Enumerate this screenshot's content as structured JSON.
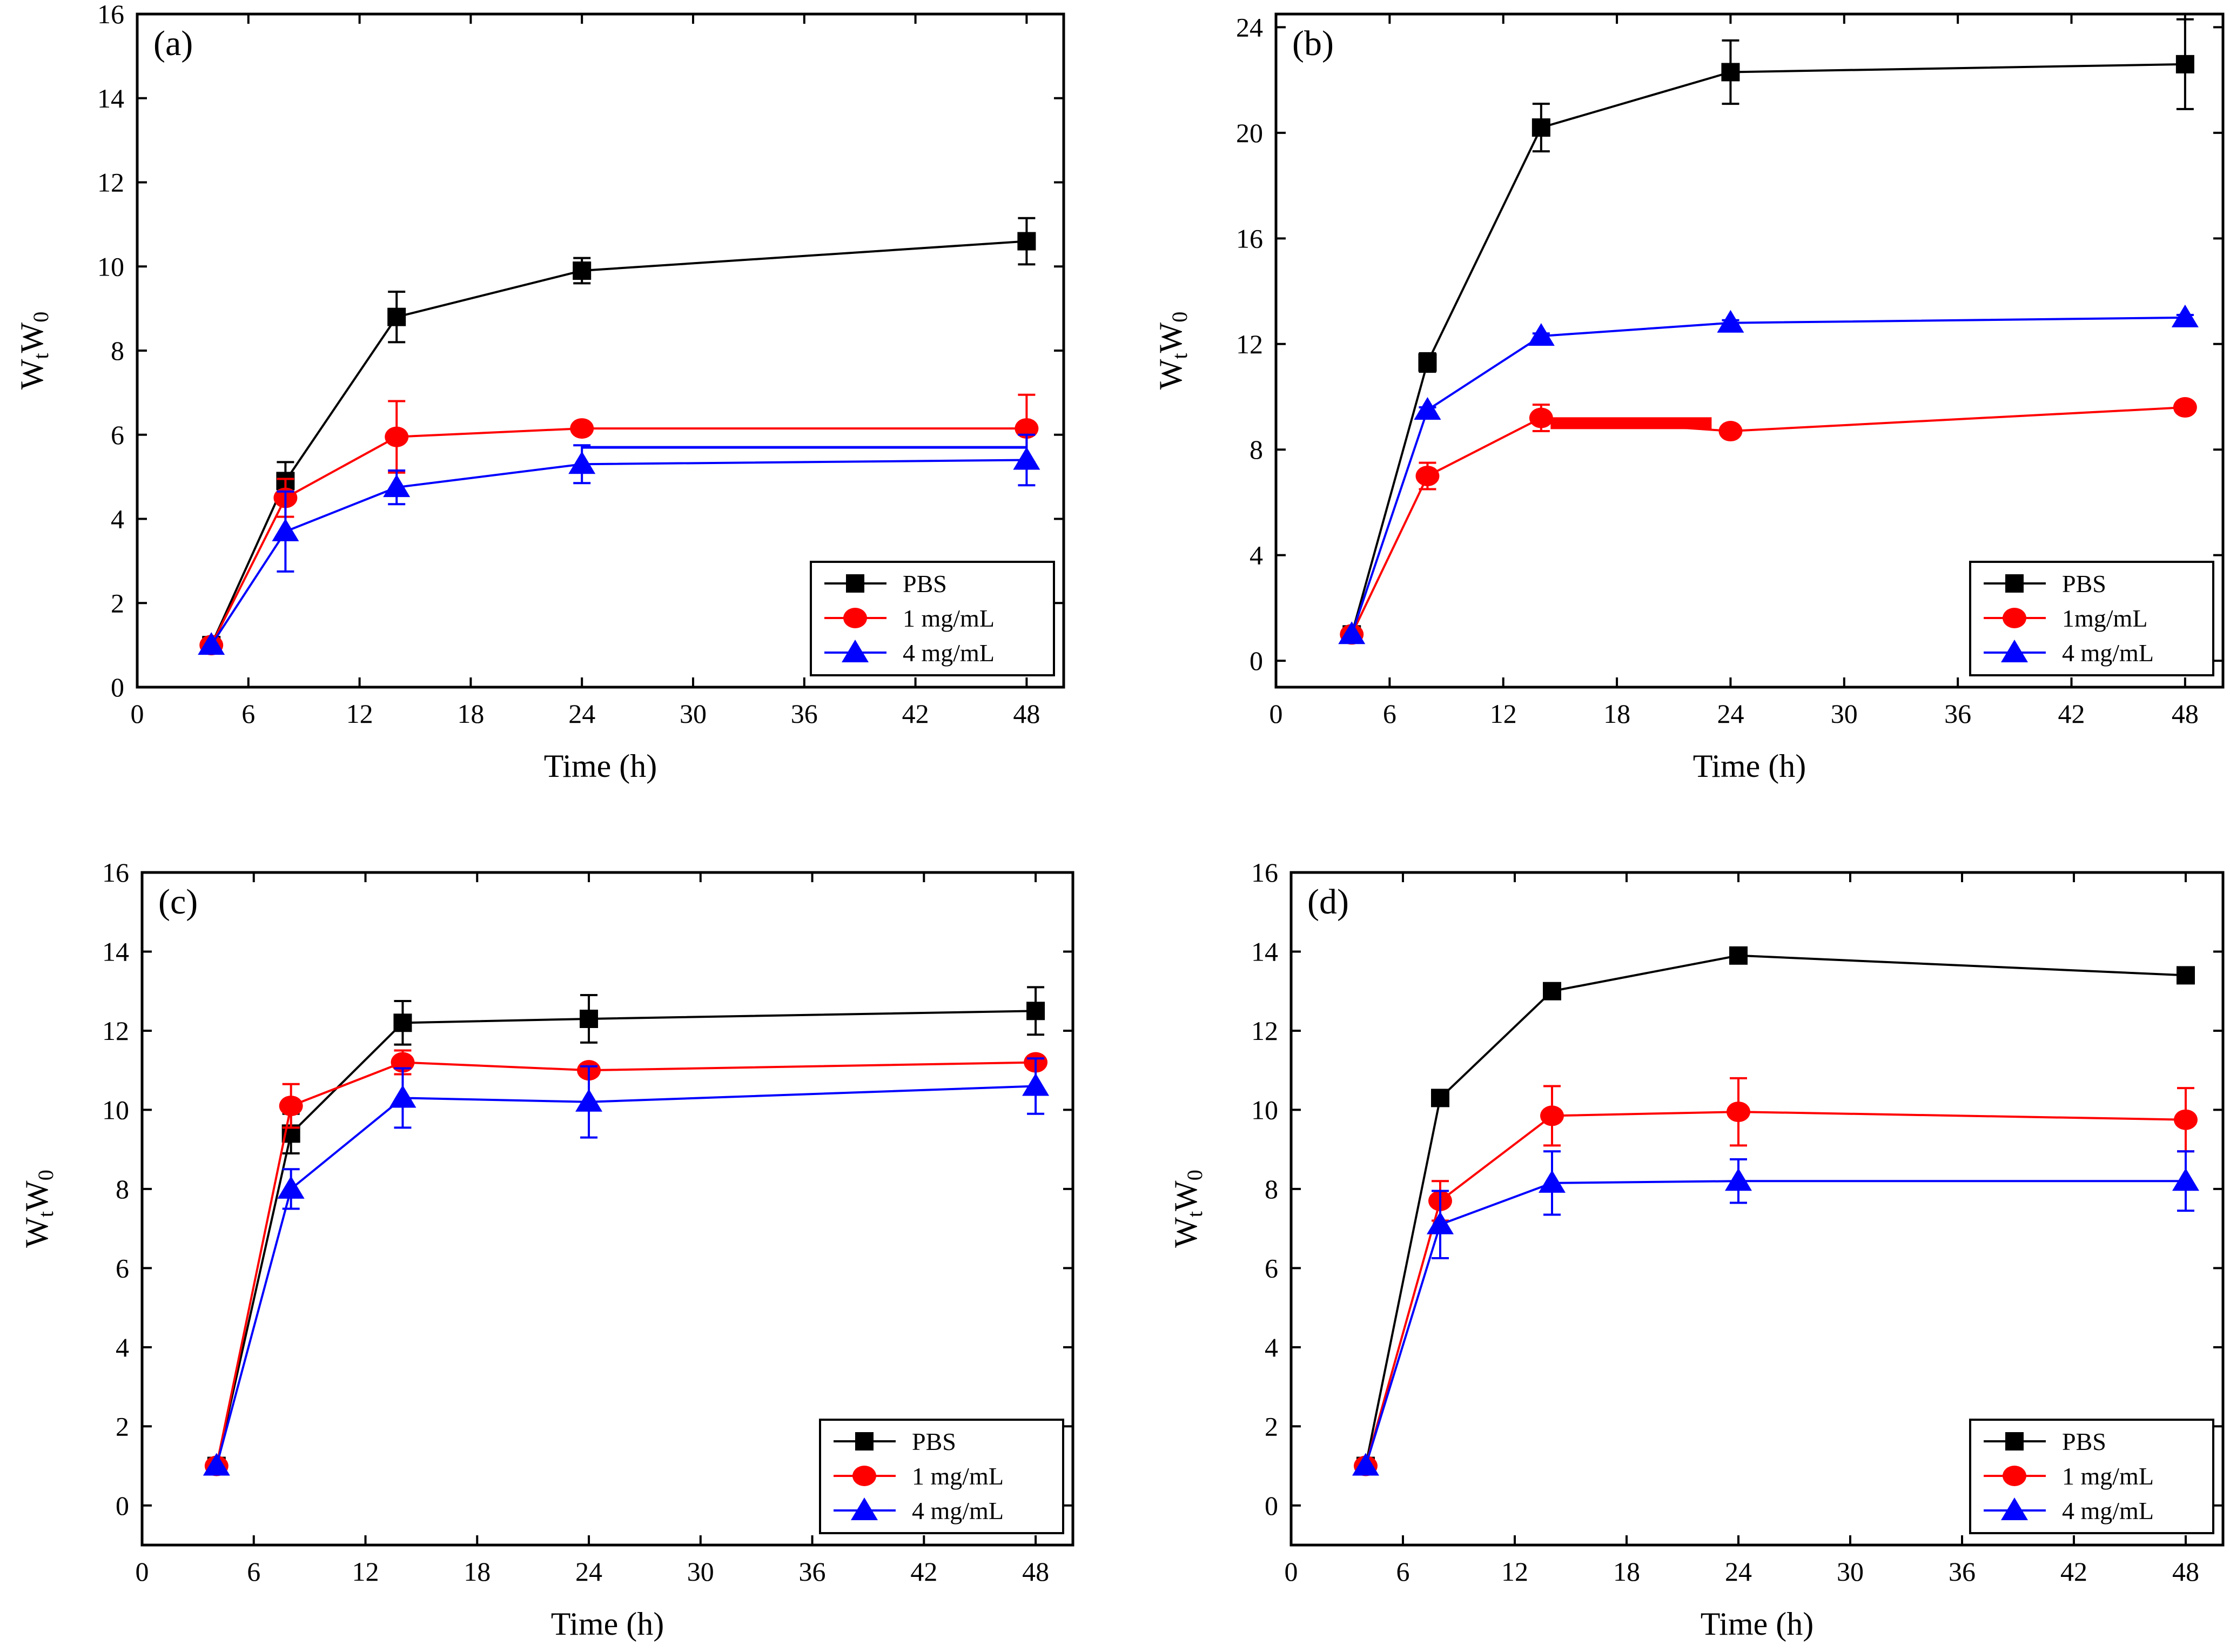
{
  "colors": {
    "PBS": "#000000",
    "1mg": "#ff0000",
    "4mg": "#0000ff",
    "axis": "#000000"
  },
  "chart_data": [
    {
      "type": "line",
      "panel_label": "(a)",
      "xlabel": "Time (h)",
      "ylabel_main": "W",
      "ylabel_sub1": "t",
      "ylabel_mid": "W",
      "ylabel_sub2": "0",
      "xlim": [
        0,
        50
      ],
      "ylim": [
        0,
        16
      ],
      "x_ticks": [
        0,
        6,
        12,
        18,
        24,
        30,
        36,
        42,
        48
      ],
      "y_ticks": [
        0,
        2,
        4,
        6,
        8,
        10,
        12,
        14,
        16
      ],
      "legend_position": "bottom-right",
      "x": [
        4,
        8,
        14,
        24,
        48
      ],
      "series": [
        {
          "name": "PBS",
          "marker": "square",
          "values": [
            1.0,
            4.9,
            8.8,
            9.9,
            10.6
          ],
          "errors": [
            0.05,
            0.45,
            0.6,
            0.3,
            0.55
          ]
        },
        {
          "name": "1 mg/mL",
          "marker": "circle",
          "values": [
            1.0,
            4.5,
            5.95,
            6.15,
            6.15
          ],
          "errors": [
            0.05,
            0.45,
            0.85,
            0.05,
            0.8
          ]
        },
        {
          "name": "4 mg/mL",
          "marker": "triangle",
          "values": [
            1.0,
            3.7,
            4.75,
            5.3,
            5.4
          ],
          "errors": [
            0.05,
            0.95,
            0.4,
            0.45,
            0.6
          ],
          "h_line": {
            "from": 24,
            "to": 48,
            "y": 5.7
          }
        }
      ]
    },
    {
      "type": "line",
      "panel_label": "(b)",
      "xlabel": "Time (h)",
      "ylabel_main": "W",
      "ylabel_sub1": "t",
      "ylabel_mid": "W",
      "ylabel_sub2": "0",
      "xlim": [
        0,
        50
      ],
      "ylim": [
        -1,
        24.5
      ],
      "x_ticks": [
        0,
        6,
        12,
        18,
        24,
        30,
        36,
        42,
        48
      ],
      "y_ticks": [
        0,
        4,
        8,
        12,
        16,
        20,
        24
      ],
      "legend_position": "bottom-right",
      "x": [
        4,
        8,
        14,
        24,
        48
      ],
      "series": [
        {
          "name": "PBS",
          "marker": "square",
          "values": [
            1.0,
            11.3,
            20.2,
            22.3,
            22.6
          ],
          "errors": [
            0.05,
            0.35,
            0.9,
            1.2,
            1.7
          ]
        },
        {
          "name": "1mg/mL",
          "marker": "circle",
          "values": [
            1.0,
            7.0,
            9.2,
            8.7,
            9.6
          ],
          "errors": [
            0.05,
            0.5,
            0.5,
            0.1,
            0.1
          ],
          "bar": {
            "from": 14.5,
            "to": 23,
            "y": 9.0
          }
        },
        {
          "name": "4 mg/mL",
          "marker": "triangle",
          "values": [
            1.0,
            9.5,
            12.3,
            12.8,
            13.0
          ],
          "errors": [
            0.05,
            0.1,
            0.1,
            0.1,
            0.1
          ]
        }
      ]
    },
    {
      "type": "line",
      "panel_label": "(c)",
      "xlabel": "Time (h)",
      "ylabel_main": "W",
      "ylabel_sub1": "t",
      "ylabel_mid": "W",
      "ylabel_sub2": "0",
      "xlim": [
        0,
        50
      ],
      "ylim": [
        -1,
        16
      ],
      "x_ticks": [
        0,
        6,
        12,
        18,
        24,
        30,
        36,
        42,
        48
      ],
      "y_ticks": [
        0,
        2,
        4,
        6,
        8,
        10,
        12,
        14,
        16
      ],
      "legend_position": "bottom-right",
      "x": [
        4,
        8,
        14,
        24,
        48
      ],
      "series": [
        {
          "name": "PBS",
          "marker": "square",
          "values": [
            1.0,
            9.4,
            12.2,
            12.3,
            12.5
          ],
          "errors": [
            0.05,
            0.5,
            0.55,
            0.6,
            0.6
          ]
        },
        {
          "name": "1 mg/mL",
          "marker": "circle",
          "values": [
            1.0,
            10.1,
            11.2,
            11.0,
            11.2
          ],
          "errors": [
            0.05,
            0.55,
            0.3,
            0.1,
            0.1
          ]
        },
        {
          "name": "4 mg/mL",
          "marker": "triangle",
          "values": [
            1.0,
            8.0,
            10.3,
            10.2,
            10.6
          ],
          "errors": [
            0.05,
            0.5,
            0.75,
            0.9,
            0.7
          ]
        }
      ]
    },
    {
      "type": "line",
      "panel_label": "(d)",
      "xlabel": "Time (h)",
      "ylabel_main": "W",
      "ylabel_sub1": "t",
      "ylabel_mid": "W",
      "ylabel_sub2": "0",
      "xlim": [
        0,
        50
      ],
      "ylim": [
        -1,
        16
      ],
      "x_ticks": [
        0,
        6,
        12,
        18,
        24,
        30,
        36,
        42,
        48
      ],
      "y_ticks": [
        0,
        2,
        4,
        6,
        8,
        10,
        12,
        14,
        16
      ],
      "legend_position": "bottom-right",
      "x": [
        4,
        8,
        14,
        24,
        48
      ],
      "series": [
        {
          "name": "PBS",
          "marker": "square",
          "values": [
            1.0,
            10.3,
            13.0,
            13.9,
            13.4
          ],
          "errors": [
            0.05,
            0.1,
            0.1,
            0.1,
            0.1
          ]
        },
        {
          "name": "1 mg/mL",
          "marker": "circle",
          "values": [
            1.0,
            7.7,
            9.85,
            9.95,
            9.75
          ],
          "errors": [
            0.05,
            0.5,
            0.75,
            0.85,
            0.8
          ]
        },
        {
          "name": "4 mg/mL",
          "marker": "triangle",
          "values": [
            1.0,
            7.1,
            8.15,
            8.2,
            8.2
          ],
          "errors": [
            0.05,
            0.85,
            0.8,
            0.55,
            0.75
          ]
        }
      ]
    }
  ]
}
